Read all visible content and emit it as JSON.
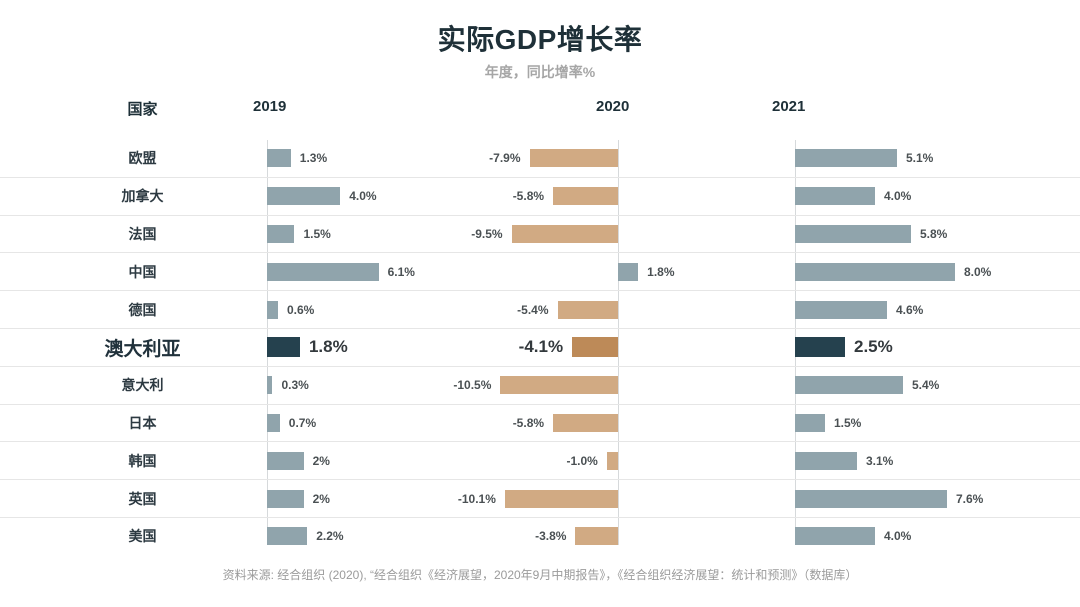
{
  "title": "实际GDP增长率",
  "subtitle": "年度，同比增率%",
  "header": {
    "country": "国家",
    "y2019": "2019",
    "y2020": "2020",
    "y2021": "2021"
  },
  "footer": "资料来源: 经合组织 (2020), “经合组织《经济展望，2020年9月中期报告》，《经合组织经济展望：统计和预测》（数据库）",
  "colors": {
    "bar_positive": "#90a4ac",
    "bar_negative": "#d1aa83",
    "highlight_positive": "#25414e",
    "highlight_negative": "#bd8a58",
    "title_text": "#1e3038",
    "muted_text": "#a6a6a6"
  },
  "chart_data": {
    "type": "bar",
    "orientation": "horizontal",
    "title": "实际GDP增长率",
    "subtitle": "年度，同比增率%",
    "categories": [
      "欧盟",
      "加拿大",
      "法国",
      "中国",
      "德国",
      "澳大利亚",
      "意大利",
      "日本",
      "韩国",
      "英国",
      "美国"
    ],
    "highlight_category": "澳大利亚",
    "series": [
      {
        "name": "2019",
        "values": [
          1.3,
          4.0,
          1.5,
          6.1,
          0.6,
          1.8,
          0.3,
          0.7,
          2,
          2,
          2.2
        ]
      },
      {
        "name": "2020",
        "values": [
          -7.9,
          -5.8,
          -9.5,
          1.8,
          -5.4,
          -4.1,
          -10.5,
          -5.8,
          -1.0,
          -10.1,
          -3.8
        ]
      },
      {
        "name": "2021",
        "values": [
          5.1,
          4.0,
          5.8,
          8.0,
          4.6,
          2.5,
          5.4,
          1.5,
          3.1,
          7.6,
          4.0
        ]
      }
    ],
    "rows": [
      {
        "country": "欧盟",
        "highlight": false,
        "v2019": 1.3,
        "l2019": "1.3%",
        "v2020": -7.9,
        "l2020": "-7.9%",
        "v2021": 5.1,
        "l2021": "5.1%"
      },
      {
        "country": "加拿大",
        "highlight": false,
        "v2019": 4.0,
        "l2019": "4.0%",
        "v2020": -5.8,
        "l2020": "-5.8%",
        "v2021": 4.0,
        "l2021": "4.0%"
      },
      {
        "country": "法国",
        "highlight": false,
        "v2019": 1.5,
        "l2019": "1.5%",
        "v2020": -9.5,
        "l2020": "-9.5%",
        "v2021": 5.8,
        "l2021": "5.8%"
      },
      {
        "country": "中国",
        "highlight": false,
        "v2019": 6.1,
        "l2019": "6.1%",
        "v2020": 1.8,
        "l2020": "1.8%",
        "v2021": 8.0,
        "l2021": "8.0%"
      },
      {
        "country": "德国",
        "highlight": false,
        "v2019": 0.6,
        "l2019": "0.6%",
        "v2020": -5.4,
        "l2020": "-5.4%",
        "v2021": 4.6,
        "l2021": "4.6%"
      },
      {
        "country": "澳大利亚",
        "highlight": true,
        "v2019": 1.8,
        "l2019": "1.8%",
        "v2020": -4.1,
        "l2020": "-4.1%",
        "v2021": 2.5,
        "l2021": "2.5%"
      },
      {
        "country": "意大利",
        "highlight": false,
        "v2019": 0.3,
        "l2019": "0.3%",
        "v2020": -10.5,
        "l2020": "-10.5%",
        "v2021": 5.4,
        "l2021": "5.4%"
      },
      {
        "country": "日本",
        "highlight": false,
        "v2019": 0.7,
        "l2019": "0.7%",
        "v2020": -5.8,
        "l2020": "-5.8%",
        "v2021": 1.5,
        "l2021": "1.5%"
      },
      {
        "country": "韩国",
        "highlight": false,
        "v2019": 2,
        "l2019": "2%",
        "v2020": -1.0,
        "l2020": "-1.0%",
        "v2021": 3.1,
        "l2021": "3.1%"
      },
      {
        "country": "英国",
        "highlight": false,
        "v2019": 2,
        "l2019": "2%",
        "v2020": -10.1,
        "l2020": "-10.1%",
        "v2021": 7.6,
        "l2021": "7.6%"
      },
      {
        "country": "美国",
        "highlight": false,
        "v2019": 2.2,
        "l2019": "2.2%",
        "v2020": -3.8,
        "l2020": "-3.8%",
        "v2021": 4.0,
        "l2021": "4.0%"
      }
    ]
  }
}
